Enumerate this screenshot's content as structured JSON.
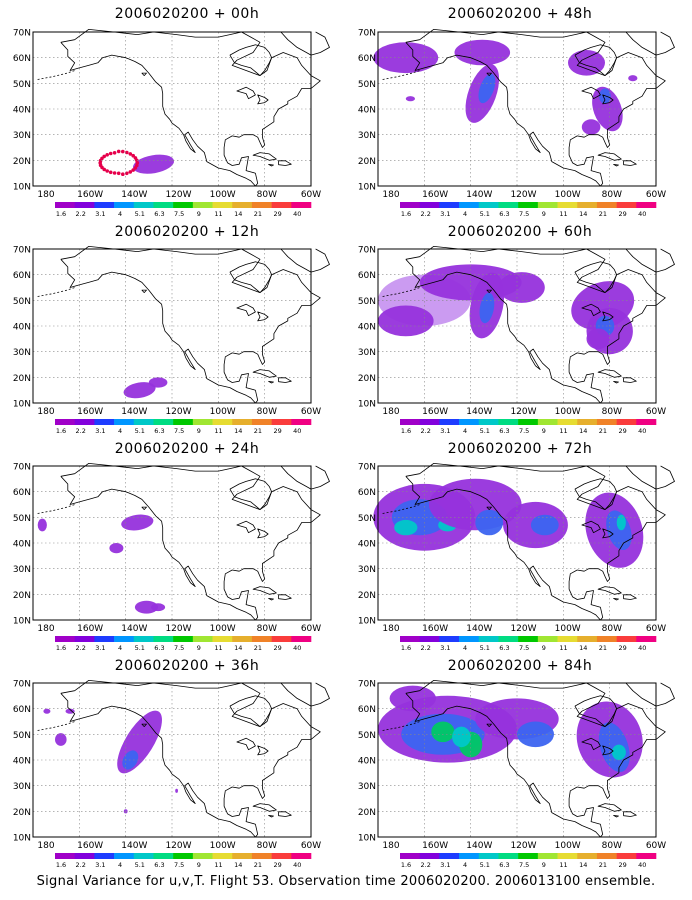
{
  "panels": [
    {
      "title": "2006020200 + 00h",
      "intensity": 0
    },
    {
      "title": "2006020200 + 48h",
      "intensity": 3
    },
    {
      "title": "2006020200 + 12h",
      "intensity": 1
    },
    {
      "title": "2006020200 + 60h",
      "intensity": 4
    },
    {
      "title": "2006020200 + 24h",
      "intensity": 1
    },
    {
      "title": "2006020200 + 72h",
      "intensity": 5
    },
    {
      "title": "2006020200 + 36h",
      "intensity": 2
    },
    {
      "title": "2006020200 + 84h",
      "intensity": 6
    }
  ],
  "y_axis_labels": [
    "70N",
    "60N",
    "50N",
    "40N",
    "30N",
    "20N",
    "10N"
  ],
  "x_axis_labels": [
    "180",
    "160W",
    "140W",
    "120W",
    "100W",
    "80W",
    "60W"
  ],
  "colorbar": {
    "levels": [
      "1.6",
      "2.2",
      "3.1",
      "4",
      "5.1",
      "6.3",
      "7.5",
      "9",
      "11",
      "14",
      "21",
      "29",
      "40"
    ],
    "colors": [
      "#a000c8",
      "#8200dc",
      "#1e3cff",
      "#0096ff",
      "#00c8c8",
      "#00dc82",
      "#00c800",
      "#a0e632",
      "#e6dc32",
      "#e6af2d",
      "#f08228",
      "#fa3c3c",
      "#f00082"
    ]
  },
  "footer": "Signal Variance for u,v,T. Flight 53. Observation time 2006020200. 2006013100 ensemble.",
  "colors": {
    "light_purple": "#c896f0",
    "purple": "#9632dc",
    "blue": "#3c64f0",
    "cyan": "#00c8c8",
    "green": "#00c864",
    "marker": "#e6004b"
  }
}
